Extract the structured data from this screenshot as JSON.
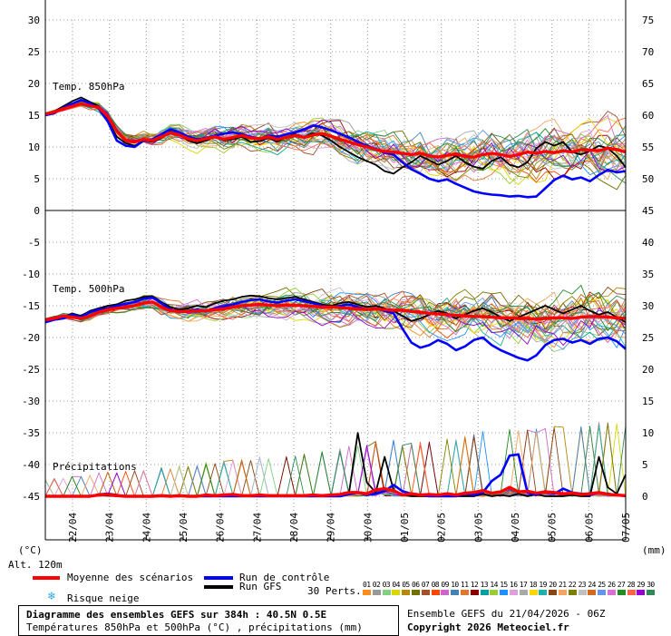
{
  "chart_data": {
    "type": "line",
    "title": "Diagramme des ensembles GEFS sur 384h : 40.5N 0.5E",
    "subtitle": "Températures 850hPa et 500hPa (°C) , précipitations (mm)",
    "x_tick_labels": [
      "22/04",
      "23/04",
      "24/04",
      "25/04",
      "26/04",
      "27/04",
      "28/04",
      "29/04",
      "30/04",
      "01/05",
      "02/05",
      "03/05",
      "04/05",
      "05/05",
      "06/05",
      "07/05"
    ],
    "left_axis_ticks": [
      "30",
      "25",
      "20",
      "15",
      "10",
      "5",
      "0",
      "-5",
      "-10",
      "-15",
      "-20",
      "-25",
      "-30",
      "-35",
      "-40",
      "-45"
    ],
    "right_axis_ticks": [
      "75",
      "70",
      "65",
      "60",
      "55",
      "50",
      "45",
      "40",
      "35",
      "30",
      "25",
      "20",
      "15",
      "10",
      "5",
      "0"
    ],
    "left_unit": "(°C)",
    "right_unit": "(mm)",
    "altitude": "Alt. 120m",
    "panels": {
      "t850": {
        "label": "Temp. 850hPa",
        "ylim": [
          0,
          30
        ],
        "mean": [
          15.2,
          15.5,
          16.0,
          16.4,
          16.8,
          16.5,
          16.2,
          14.8,
          12.5,
          11.0,
          10.8,
          11.2,
          11.0,
          11.6,
          12.2,
          11.9,
          11.3,
          11.0,
          11.3,
          11.6,
          11.2,
          11.5,
          11.8,
          11.4,
          11.3,
          11.6,
          11.2,
          11.5,
          11.8,
          11.5,
          11.9,
          12.1,
          11.7,
          11.2,
          10.8,
          10.4,
          10.0,
          9.6,
          9.3,
          9.2,
          9.0,
          8.8,
          9.0,
          8.6,
          8.4,
          8.7,
          8.9,
          8.5,
          8.4,
          8.8,
          9.0,
          8.8,
          8.5,
          8.8,
          9.2,
          9.0,
          9.3,
          9.1,
          9.4,
          9.2,
          9.6,
          9.5,
          9.4,
          9.8,
          9.6,
          9.2
        ],
        "control": [
          15.0,
          15.3,
          16.2,
          16.8,
          17.4,
          16.9,
          16.0,
          14.0,
          11.0,
          10.2,
          10.0,
          11.0,
          11.2,
          12.0,
          12.8,
          12.3,
          11.6,
          11.2,
          11.4,
          11.8,
          12.1,
          12.3,
          12.0,
          11.6,
          11.3,
          11.8,
          11.6,
          12.0,
          12.3,
          12.8,
          13.4,
          13.1,
          12.6,
          12.1,
          11.5,
          10.8,
          10.2,
          9.7,
          9.1,
          8.8,
          7.6,
          6.5,
          5.8,
          5.0,
          4.6,
          4.9,
          4.2,
          3.6,
          3.0,
          2.7,
          2.5,
          2.4,
          2.2,
          2.3,
          2.1,
          2.2,
          3.5,
          4.8,
          5.5,
          4.9,
          5.2,
          4.6,
          5.6,
          6.4,
          6.0,
          6.2
        ],
        "gfs": [
          15.1,
          15.6,
          16.4,
          17.2,
          17.8,
          17.1,
          16.4,
          14.2,
          11.6,
          10.6,
          10.2,
          11.0,
          10.8,
          11.4,
          12.4,
          12.0,
          11.0,
          10.6,
          11.0,
          11.6,
          11.0,
          11.2,
          11.6,
          10.8,
          10.9,
          11.4,
          10.8,
          11.6,
          12.0,
          11.6,
          12.2,
          11.8,
          11.0,
          10.0,
          9.2,
          8.4,
          7.8,
          7.2,
          6.2,
          5.8,
          6.8,
          7.6,
          8.6,
          7.9,
          7.2,
          7.8,
          8.6,
          7.6,
          6.9,
          6.6,
          7.8,
          8.4,
          7.2,
          6.8,
          7.6,
          9.8,
          10.8,
          10.2,
          10.8,
          9.2,
          8.8,
          9.4,
          10.2,
          9.8,
          8.6,
          6.8
        ]
      },
      "t500": {
        "label": "Temp. 500hPa",
        "ylim": [
          -45,
          0
        ],
        "mean": [
          -17.2,
          -17.0,
          -16.6,
          -16.8,
          -17.0,
          -16.6,
          -16.0,
          -15.6,
          -15.4,
          -15.2,
          -15.0,
          -14.6,
          -14.4,
          -15.2,
          -15.8,
          -15.9,
          -15.9,
          -15.8,
          -15.8,
          -15.6,
          -15.5,
          -15.2,
          -15.0,
          -14.9,
          -14.8,
          -14.9,
          -15.0,
          -14.9,
          -14.9,
          -15.0,
          -15.1,
          -15.2,
          -15.2,
          -15.3,
          -15.4,
          -15.5,
          -15.6,
          -15.5,
          -15.6,
          -15.7,
          -15.7,
          -15.9,
          -16.0,
          -16.2,
          -16.3,
          -16.4,
          -16.5,
          -16.6,
          -16.7,
          -16.7,
          -16.8,
          -16.9,
          -16.9,
          -17.0,
          -17.0,
          -17.1,
          -17.0,
          -16.9,
          -16.9,
          -17.0,
          -16.8,
          -16.7,
          -16.7,
          -16.8,
          -16.9,
          -17.0
        ],
        "control": [
          -17.6,
          -17.2,
          -17.0,
          -16.4,
          -16.8,
          -16.0,
          -15.6,
          -15.4,
          -15.0,
          -14.7,
          -14.4,
          -13.9,
          -13.7,
          -14.6,
          -15.6,
          -16.0,
          -15.8,
          -15.6,
          -15.9,
          -15.4,
          -15.1,
          -14.8,
          -14.4,
          -14.1,
          -14.0,
          -14.3,
          -14.5,
          -14.2,
          -14.0,
          -14.3,
          -14.6,
          -15.0,
          -15.3,
          -15.0,
          -14.8,
          -15.2,
          -15.6,
          -15.4,
          -15.8,
          -16.2,
          -18.6,
          -20.8,
          -21.6,
          -21.2,
          -20.4,
          -21.0,
          -22.0,
          -21.4,
          -20.4,
          -20.0,
          -21.2,
          -22.0,
          -22.6,
          -23.2,
          -23.6,
          -22.8,
          -21.2,
          -20.4,
          -20.2,
          -20.8,
          -20.4,
          -21.0,
          -20.2,
          -20.0,
          -20.6,
          -21.8
        ],
        "gfs": [
          -17.4,
          -17.0,
          -16.8,
          -16.2,
          -16.6,
          -15.8,
          -15.4,
          -15.0,
          -14.8,
          -14.2,
          -14.0,
          -13.6,
          -13.5,
          -14.4,
          -15.2,
          -15.6,
          -15.4,
          -15.0,
          -15.2,
          -14.6,
          -14.2,
          -14.0,
          -13.6,
          -13.4,
          -13.5,
          -13.8,
          -14.0,
          -13.8,
          -13.6,
          -14.0,
          -14.4,
          -14.8,
          -15.0,
          -14.6,
          -14.4,
          -14.8,
          -15.2,
          -15.0,
          -15.4,
          -15.8,
          -16.6,
          -17.4,
          -17.0,
          -16.4,
          -15.8,
          -16.2,
          -17.0,
          -16.4,
          -15.8,
          -15.4,
          -16.0,
          -16.8,
          -17.4,
          -16.8,
          -16.2,
          -15.6,
          -15.0,
          -15.6,
          -16.2,
          -15.6,
          -15.0,
          -15.8,
          -16.4,
          -16.0,
          -16.8,
          -17.6
        ]
      },
      "precip": {
        "label": "Précipitations",
        "ylim": [
          0,
          45
        ],
        "mean": [
          0,
          0,
          0,
          0,
          0,
          0,
          0.2,
          0.3,
          0.1,
          0,
          0,
          0,
          0,
          0.1,
          0,
          0.1,
          0,
          0,
          0.2,
          0.1,
          0.2,
          0.3,
          0.1,
          0.1,
          0.2,
          0.1,
          0.1,
          0.1,
          0.1,
          0.1,
          0.2,
          0.1,
          0.2,
          0.3,
          0.6,
          0.6,
          0.4,
          1.0,
          1.2,
          0.9,
          0.2,
          0.4,
          0.2,
          0.3,
          0.2,
          0.4,
          0.2,
          0.5,
          0.6,
          0.9,
          0.5,
          0.7,
          1.4,
          0.7,
          0.8,
          0.5,
          0.7,
          0.6,
          0.4,
          0.5,
          0.3,
          0.4,
          0.6,
          0.3,
          0.2,
          0.1
        ],
        "control": [
          0,
          0,
          0,
          0,
          0,
          0,
          0.3,
          0.4,
          0.2,
          0,
          0,
          0,
          0,
          0,
          0,
          0,
          0,
          0,
          0,
          0,
          0,
          0,
          0,
          0,
          0,
          0,
          0,
          0,
          0,
          0,
          0,
          0,
          0,
          0,
          0.3,
          0.6,
          0.2,
          0.4,
          0.8,
          1.8,
          0.8,
          0.4,
          0.2,
          0,
          0,
          0,
          0,
          0.4,
          0.2,
          0.6,
          2.4,
          3.4,
          6.4,
          6.6,
          0.6,
          0.2,
          0.8,
          0.4,
          1.2,
          0.6,
          0.4,
          0.2,
          0.6,
          0.4,
          0.2,
          0
        ],
        "gfs": [
          0,
          0,
          0,
          0,
          0,
          0,
          0.2,
          0.1,
          0,
          0,
          0,
          0,
          0,
          0,
          0,
          0,
          0,
          0,
          0,
          0,
          0,
          0,
          0,
          0,
          0,
          0,
          0,
          0,
          0,
          0,
          0,
          0,
          0,
          0,
          0.4,
          10.0,
          2.2,
          0.6,
          6.2,
          1.0,
          0.2,
          0,
          0,
          0,
          0.2,
          0,
          0,
          0,
          0,
          0.4,
          0,
          0.2,
          0,
          0.4,
          0,
          0.3,
          0,
          0,
          0,
          0.2,
          0,
          0,
          6.2,
          1.4,
          0.4,
          3.4
        ]
      }
    },
    "colors": {
      "mean": "#ff0000",
      "control": "#0000ff",
      "gfs": "#000000",
      "axis": "#000000",
      "grid": "#9a9a9a"
    }
  },
  "legend": {
    "mean": "Moyenne des scénarios",
    "control": "Run de contrôle",
    "gfs": "Run GFS",
    "snow": "Risque neige",
    "perts": "30 Perts.",
    "pert_numbers": [
      "01",
      "02",
      "03",
      "04",
      "05",
      "06",
      "07",
      "08",
      "09",
      "10",
      "11",
      "12",
      "13",
      "14",
      "15",
      "16",
      "17",
      "18",
      "19",
      "20",
      "21",
      "22",
      "23",
      "24",
      "25",
      "26",
      "27",
      "28",
      "29",
      "30"
    ],
    "pert_colors": [
      "#ff8c1a",
      "#999999",
      "#7fd07f",
      "#d8d800",
      "#b8860b",
      "#707000",
      "#a0522d",
      "#ff4500",
      "#cc66cc",
      "#4682b4",
      "#e07830",
      "#8b0000",
      "#00a0a0",
      "#9acd32",
      "#1e90ff",
      "#dda0dd",
      "#a9a9a9",
      "#ffd700",
      "#20b2aa",
      "#8b4513",
      "#f4a460",
      "#808000",
      "#c0c0c0",
      "#d2691e",
      "#6495ed",
      "#da70d6",
      "#228b22",
      "#ff6347",
      "#9400d3",
      "#2e8b57"
    ]
  },
  "footer": {
    "title": "Diagramme des ensembles GEFS sur 384h : 40.5N 0.5E",
    "subtitle": "Températures 850hPa et 500hPa (°C) , précipitations (mm)",
    "run": "Ensemble GEFS du 21/04/2026 - 06Z",
    "copyright": "Copyright 2026 Meteociel.fr"
  }
}
